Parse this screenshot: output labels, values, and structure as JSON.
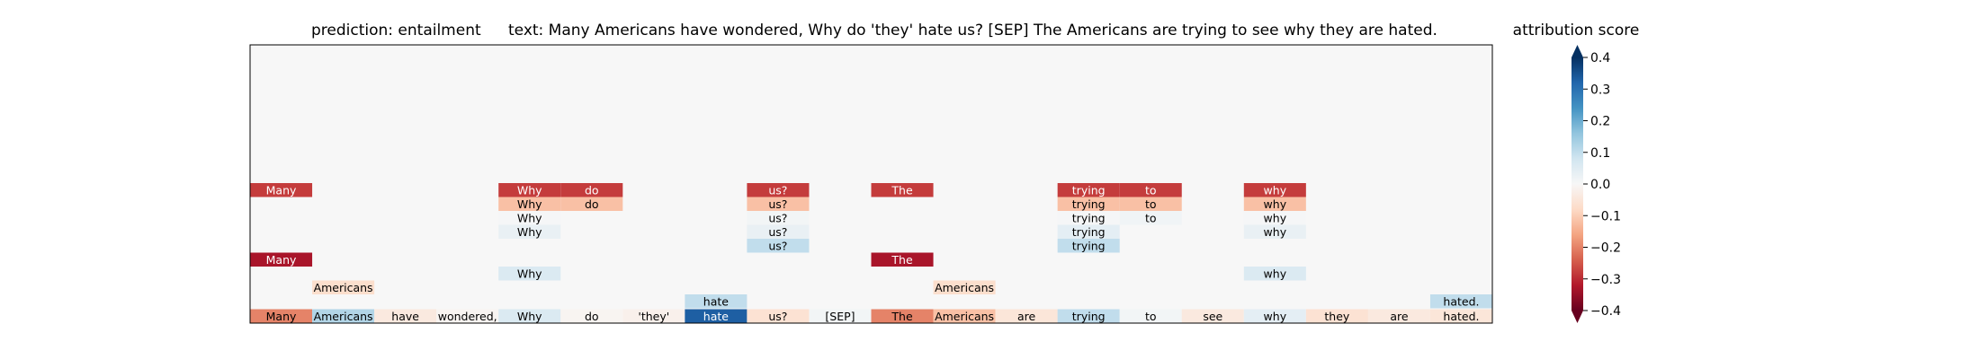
{
  "chart_data": {
    "type": "heatmap",
    "title_prediction": "prediction:  entailment",
    "title_text": "text:  Many Americans have wondered, Why do 'they' hate us? [SEP] The Americans are trying to see why they are hated.",
    "tokens": [
      "Many",
      "Americans",
      "have",
      "wondered,",
      "Why",
      "do",
      "'they'",
      "hate",
      "us?",
      "[SEP]",
      "The",
      "Americans",
      "are",
      "trying",
      "to",
      "see",
      "why",
      "they",
      "are",
      "hated."
    ],
    "base_scores": [
      -0.2,
      0.12,
      -0.04,
      -0.01,
      0.06,
      -0.01,
      -0.02,
      0.33,
      -0.06,
      0.01,
      -0.2,
      -0.12,
      -0.05,
      0.1,
      0.01,
      -0.04,
      0.04,
      -0.06,
      -0.04,
      -0.05
    ],
    "rows": [
      [
        [
          0,
          "Many",
          -0.28
        ],
        [
          4,
          "Why",
          -0.28
        ],
        [
          5,
          "do",
          -0.28
        ],
        [
          8,
          "us?",
          -0.28
        ],
        [
          10,
          "The",
          -0.28
        ],
        [
          13,
          "trying",
          -0.28
        ],
        [
          14,
          "to",
          -0.28
        ],
        [
          16,
          "why",
          -0.28
        ]
      ],
      [
        [
          4,
          "Why",
          -0.12
        ],
        [
          5,
          "do",
          -0.12
        ],
        [
          8,
          "us?",
          -0.12
        ],
        [
          13,
          "trying",
          -0.12
        ],
        [
          14,
          "to",
          -0.12
        ],
        [
          16,
          "why",
          -0.12
        ]
      ],
      [
        [
          4,
          "Why",
          0.005
        ],
        [
          8,
          "us?",
          0.01
        ],
        [
          13,
          "trying",
          0.005
        ],
        [
          14,
          "to",
          0.015
        ],
        [
          16,
          "why",
          0.005
        ]
      ],
      [
        [
          4,
          "Why",
          0.03
        ],
        [
          8,
          "us?",
          0.03
        ],
        [
          13,
          "trying",
          0.04
        ],
        [
          16,
          "why",
          0.03
        ]
      ],
      [
        [
          8,
          "us?",
          0.1
        ],
        [
          13,
          "trying",
          0.1
        ]
      ],
      [
        [
          0,
          "Many",
          -0.33
        ],
        [
          10,
          "The",
          -0.33
        ]
      ],
      [
        [
          4,
          "Why",
          0.06
        ],
        [
          16,
          "why",
          0.06
        ]
      ],
      [
        [
          1,
          "Americans",
          -0.07
        ],
        [
          11,
          "Americans",
          -0.07
        ]
      ],
      [
        [
          7,
          "hate",
          0.1
        ],
        [
          19,
          "hated.",
          0.1
        ]
      ]
    ],
    "colorbar": {
      "label": "attribution score",
      "vmin": -0.4,
      "vmax": 0.4,
      "ticks": [
        "0.4",
        "0.3",
        "0.2",
        "0.1",
        "0.0",
        "−0.1",
        "−0.2",
        "−0.3",
        "−0.4"
      ],
      "tick_values": [
        0.4,
        0.3,
        0.2,
        0.1,
        0.0,
        -0.1,
        -0.2,
        -0.3,
        -0.4
      ],
      "colormap": [
        "#67001f",
        "#b2182b",
        "#d6604d",
        "#f4a582",
        "#fddbc7",
        "#f7f7f7",
        "#d1e5f0",
        "#92c5de",
        "#4393c3",
        "#2166ac",
        "#053061"
      ]
    }
  }
}
